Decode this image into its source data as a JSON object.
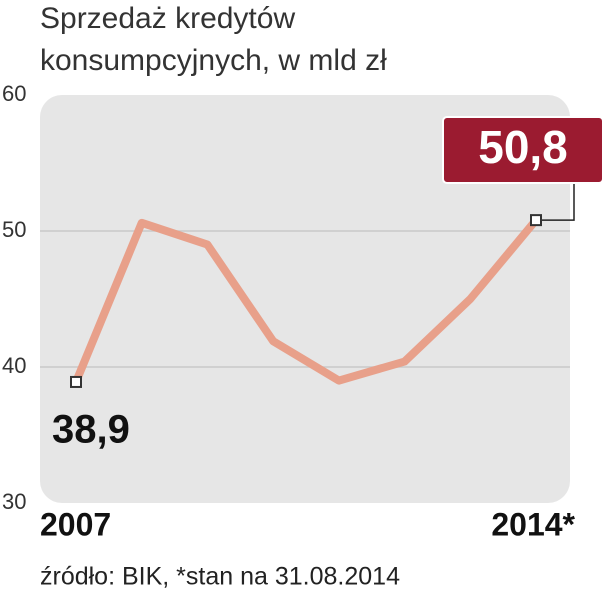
{
  "chart_data": {
    "type": "line",
    "title": [
      "Sprzedaż kredytów",
      "konsumpcyjnych, w mld zł"
    ],
    "categories": [
      "2007",
      null,
      null,
      null,
      null,
      null,
      null,
      "2014*"
    ],
    "values": [
      38.9,
      50.6,
      49.0,
      41.9,
      39.0,
      40.4,
      45.0,
      50.8
    ],
    "value_labels": [
      "38,9",
      null,
      null,
      null,
      null,
      null,
      null,
      "50,8"
    ],
    "color": "#e8a08a",
    "ylim": [
      30,
      60
    ],
    "yticks": [
      30,
      40,
      50,
      60
    ],
    "grid": true,
    "source": "źródło: BIK, *stan na 31.08.2014"
  }
}
